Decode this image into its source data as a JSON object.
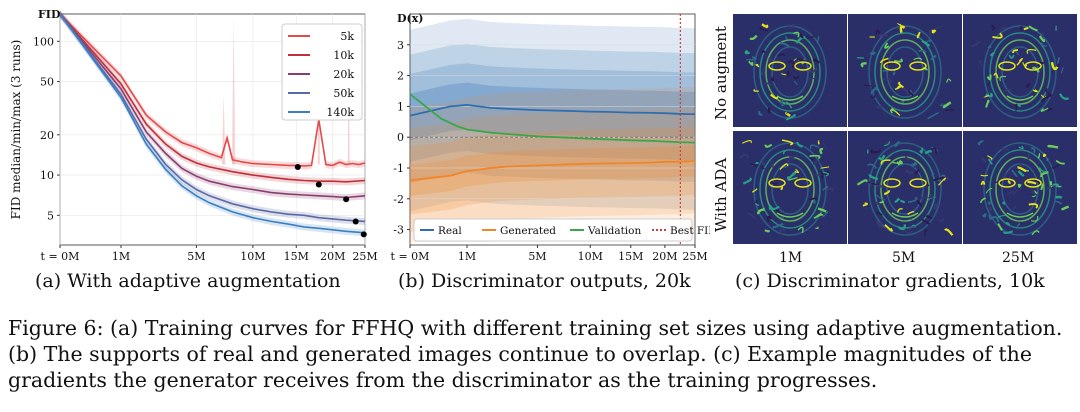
{
  "panel_a": {
    "caption": "(a) With adaptive augmentation",
    "chart_data": {
      "type": "line",
      "ylabel": "FID median/min/max (3 runs)",
      "y_axis_title": "FID",
      "yscale": "log",
      "ylim": [
        3,
        160
      ],
      "xlim": [
        0,
        25
      ],
      "xscale": "sqrt",
      "x_ticks": [
        0,
        1,
        5,
        10,
        15,
        20,
        25
      ],
      "x_tick_labels": [
        "t = 0M",
        "1M",
        "5M",
        "10M",
        "15M",
        "20M",
        "25M"
      ],
      "y_ticks": [
        5,
        10,
        20,
        50,
        100
      ],
      "y_tick_labels": [
        "5",
        "10",
        "20",
        "50",
        "100"
      ],
      "series": [
        {
          "name": "5k",
          "color": "#e34a4a",
          "values_x": [
            0,
            1,
            2,
            3,
            4,
            5,
            6,
            7,
            7.5,
            8,
            9,
            10,
            12,
            14,
            15,
            16,
            17,
            18,
            19,
            20,
            21,
            22,
            23,
            24,
            25
          ],
          "values_y": [
            160,
            55,
            28,
            21,
            17.5,
            16,
            14.5,
            13.5,
            19,
            13,
            12.5,
            12.2,
            12,
            11.8,
            11.8,
            11.7,
            11.8,
            26,
            12,
            11.8,
            12.5,
            12,
            12.2,
            12,
            12.3
          ],
          "best": [
            15.2,
            11.5
          ]
        },
        {
          "name": "10k",
          "color": "#c0303a",
          "values_x": [
            0,
            1,
            2,
            3,
            4,
            5,
            6,
            8,
            10,
            12,
            14,
            16,
            18,
            20,
            22,
            25
          ],
          "values_y": [
            160,
            48,
            24,
            17,
            13.8,
            12.3,
            11.5,
            10.6,
            10,
            9.6,
            9.3,
            9.1,
            9,
            9,
            8.9,
            9.1
          ],
          "best": [
            18,
            8.5
          ]
        },
        {
          "name": "20k",
          "color": "#8c3d6e",
          "values_x": [
            0,
            1,
            2,
            3,
            4,
            5,
            6,
            8,
            10,
            12,
            14,
            16,
            18,
            20,
            22,
            25
          ],
          "values_y": [
            160,
            44,
            21,
            14.5,
            11.2,
            9.8,
            9,
            8.2,
            7.8,
            7.4,
            7.2,
            7.1,
            7,
            6.9,
            6.8,
            7
          ],
          "best": [
            22,
            6.6
          ]
        },
        {
          "name": "50k",
          "color": "#5a6aa6",
          "values_x": [
            0,
            1,
            2,
            3,
            4,
            5,
            6,
            8,
            10,
            12,
            14,
            16,
            18,
            20,
            22,
            25
          ],
          "values_y": [
            160,
            40,
            18.5,
            12,
            9.2,
            7.8,
            7,
            6.1,
            5.6,
            5.3,
            5.1,
            5,
            4.8,
            4.7,
            4.6,
            4.5
          ],
          "best": [
            23.5,
            4.5
          ]
        },
        {
          "name": "140k",
          "color": "#3a7fc1",
          "values_x": [
            0,
            1,
            2,
            3,
            4,
            5,
            6,
            8,
            10,
            12,
            14,
            16,
            18,
            20,
            22,
            25
          ],
          "values_y": [
            160,
            38,
            17,
            11,
            8.3,
            7,
            6.2,
            5.3,
            4.8,
            4.5,
            4.3,
            4.1,
            4,
            3.9,
            3.8,
            3.7
          ],
          "best": [
            24.8,
            3.6
          ]
        }
      ]
    }
  },
  "panel_b": {
    "caption": "(b) Discriminator outputs, 20k",
    "chart_data": {
      "type": "line",
      "y_axis_title": "D(x)",
      "ylim": [
        -3.5,
        4
      ],
      "xlim": [
        0,
        25
      ],
      "xscale": "sqrt",
      "x_ticks": [
        0,
        1,
        5,
        10,
        15,
        20,
        25
      ],
      "x_tick_labels": [
        "t = 0M",
        "1M",
        "5M",
        "10M",
        "15M",
        "20M",
        "25M"
      ],
      "y_ticks": [
        -3,
        -2,
        -1,
        0,
        1,
        2,
        3
      ],
      "y_tick_labels": [
        "-3",
        "-2",
        "-1",
        "0",
        "1",
        "2",
        "3"
      ],
      "best_fid_x": 22.5,
      "series": [
        {
          "name": "Real",
          "color": "#2f6db0",
          "values_x": [
            0,
            0.5,
            1,
            2,
            3,
            5,
            8,
            10,
            12,
            15,
            18,
            20,
            22,
            24,
            25
          ],
          "values_y": [
            0.7,
            1.0,
            1.05,
            0.95,
            0.92,
            0.88,
            0.85,
            0.83,
            0.82,
            0.8,
            0.79,
            0.78,
            0.76,
            0.75,
            0.75
          ]
        },
        {
          "name": "Generated",
          "color": "#f0862a",
          "values_x": [
            0,
            0.5,
            1,
            2,
            3,
            5,
            8,
            10,
            12,
            15,
            18,
            20,
            22,
            24,
            25
          ],
          "values_y": [
            -1.4,
            -1.25,
            -1.1,
            -1.0,
            -0.95,
            -0.92,
            -0.88,
            -0.86,
            -0.85,
            -0.84,
            -0.82,
            -0.8,
            -0.8,
            -0.78,
            -0.77
          ]
        },
        {
          "name": "Validation",
          "color": "#3aa64a",
          "values_x": [
            0,
            0.3,
            0.7,
            1,
            2,
            3,
            5,
            8,
            10,
            12,
            15,
            18,
            20,
            22,
            24,
            25
          ],
          "values_y": [
            1.4,
            0.6,
            0.35,
            0.25,
            0.15,
            0.1,
            0.03,
            -0.02,
            -0.05,
            -0.07,
            -0.1,
            -0.12,
            -0.14,
            -0.16,
            -0.17,
            -0.18
          ]
        }
      ],
      "legend": [
        "Real",
        "Generated",
        "Validation",
        "Best FID"
      ]
    }
  },
  "panel_c": {
    "caption": "(c) Discriminator gradients, 10k",
    "columns": [
      "1M",
      "5M",
      "25M"
    ],
    "rows": [
      "No augment",
      "With ADA"
    ]
  },
  "caption_lines": [
    "Figure 6: (a) Training curves for FFHQ with different training set sizes using adaptive augmentation.",
    "(b) The supports of real and generated images continue to overlap. (c) Example magnitudes of the",
    "gradients the generator receives from the discriminator as the training progresses."
  ]
}
